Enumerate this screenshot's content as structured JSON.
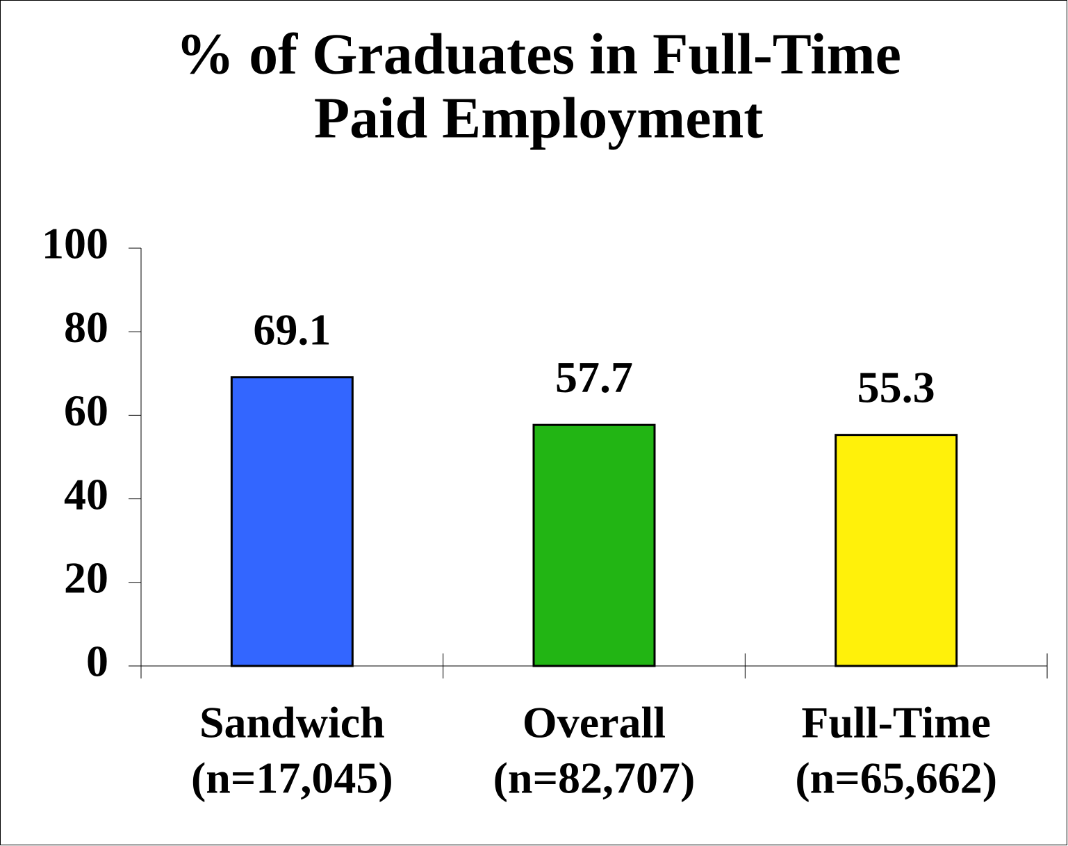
{
  "chart_data": {
    "type": "bar",
    "title": [
      "% of Graduates in Full-Time",
      "Paid Employment"
    ],
    "categories": [
      [
        "Sandwich",
        "(n=17,045)"
      ],
      [
        "Overall",
        "(n=82,707)"
      ],
      [
        "Full-Time",
        "(n=65,662)"
      ]
    ],
    "values": [
      69.1,
      57.7,
      55.3
    ],
    "colors": [
      "#3366ff",
      "#22b514",
      "#fff10a"
    ],
    "ylim": [
      0,
      100
    ],
    "yticks": [
      0,
      20,
      40,
      60,
      80,
      100
    ],
    "grid": false
  }
}
